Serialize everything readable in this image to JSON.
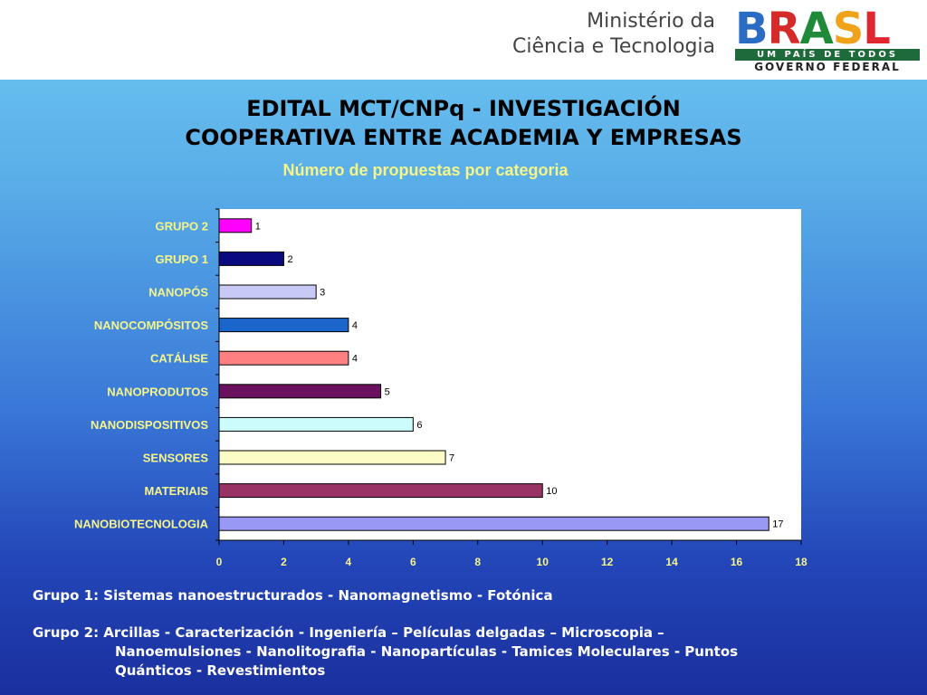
{
  "header": {
    "ministry_line1": "Ministério da",
    "ministry_line2": "Ciência e Tecnologia",
    "logo_letters": [
      "B",
      "R",
      "A",
      "S",
      "L"
    ],
    "logo_colors": [
      "#2a6bc4",
      "#d62a2a",
      "#1f8a3a",
      "#f0a21a",
      "#e0262f"
    ],
    "logo_tagline": "UM PAÍS DE TODOS",
    "logo_gov": "GOVERNO FEDERAL"
  },
  "title_line1": "EDITAL MCT/CNPq - INVESTIGACIÓN",
  "title_line2": "COOPERATIVA ENTRE ACADEMIA Y EMPRESAS",
  "chart_data": {
    "type": "bar",
    "orientation": "horizontal",
    "title": "Número de propuestas por categoria",
    "categories": [
      "GRUPO 2",
      "GRUPO 1",
      "NANOPÓS",
      "NANOCOMPÓSITOS",
      "CATÁLISE",
      "NANOPRODUTOS",
      "NANODISPOSITIVOS",
      "SENSORES",
      "MATERIAIS",
      "NANOBIOTECNOLOGIA"
    ],
    "values": [
      1,
      2,
      3,
      4,
      4,
      5,
      6,
      7,
      10,
      17
    ],
    "colors": [
      "#ff00ff",
      "#0a0a80",
      "#c9c9f5",
      "#1a66cc",
      "#ff8080",
      "#6b0f5f",
      "#ccfcfc",
      "#fcfcc6",
      "#993366",
      "#9999f5"
    ],
    "xlim": [
      0,
      18
    ],
    "xticks": [
      0,
      2,
      4,
      6,
      8,
      10,
      12,
      14,
      16,
      18
    ],
    "xlabel": "",
    "ylabel": "",
    "grid": false,
    "data_labels": true
  },
  "notes": {
    "grupo1": "Grupo 1: Sistemas nanoestructurados - Nanomagnetismo - Fotónica",
    "grupo2_line1": "Grupo 2: Arcillas  - Caracterización - Ingeniería – Películas delgadas – Microscopia –",
    "grupo2_line2": "Nanoemulsiones - Nanolitografia - Nanopartículas - Tamices Moleculares - Puntos",
    "grupo2_line3": "Quánticos - Revestimientos"
  }
}
